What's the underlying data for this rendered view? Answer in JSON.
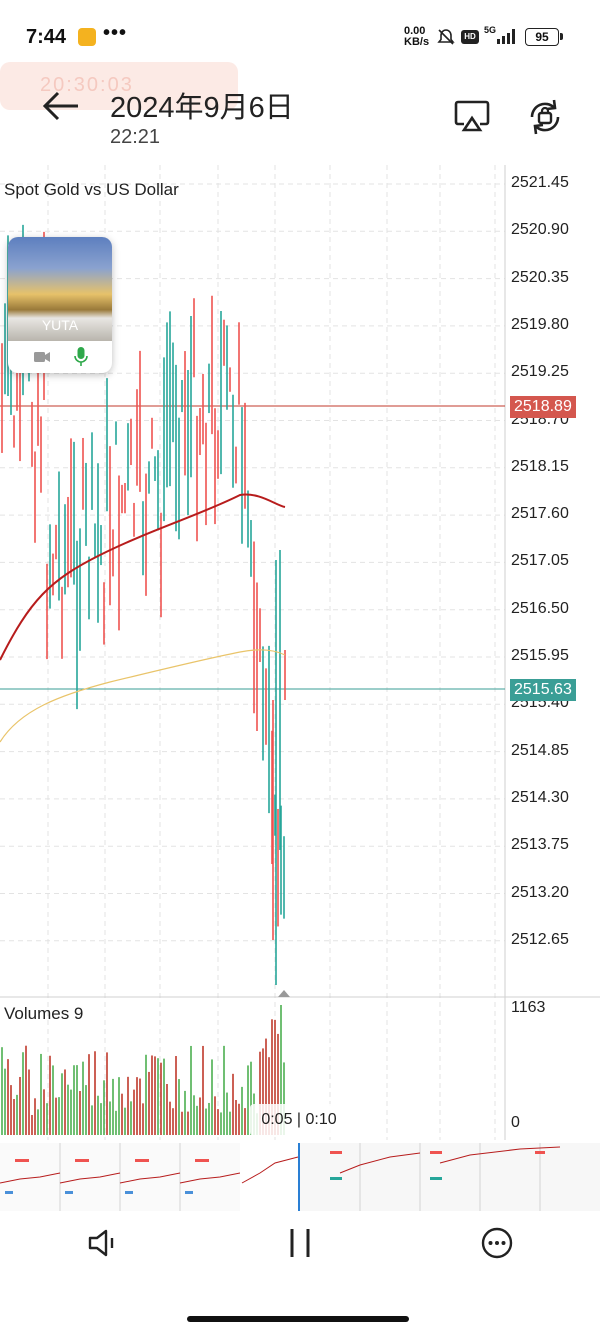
{
  "status_bar": {
    "time": "7:44",
    "dots": "•••",
    "net_speed_value": "0.00",
    "net_speed_unit": "KB/s",
    "hd": "HD",
    "network": "5G",
    "battery": "95"
  },
  "header": {
    "timer_faded": "20:30:03",
    "title": "2024年9月6日",
    "subtitle": "22:21",
    "back_icon": "arrow-left-icon",
    "cast_icon": "screen-cast-icon",
    "rotate_icon": "rotate-lock-icon"
  },
  "chart": {
    "symbol_desc": "Spot Gold vs US Dollar",
    "price_axis": [
      "2521.45",
      "2520.90",
      "2520.35",
      "2519.80",
      "2519.25",
      "2518.70",
      "2518.15",
      "2517.60",
      "2517.05",
      "2516.50",
      "2515.95",
      "2515.40",
      "2514.85",
      "2514.30",
      "2513.75",
      "2513.20",
      "2512.65"
    ],
    "red_line_price": "2518.89",
    "teal_line_price": "2515.63",
    "colors": {
      "bull": "#26a69a",
      "bear": "#ef5350",
      "ma_slow": "#b71c1c",
      "ma_fast": "#e9c46a",
      "red_line": "#c0392b",
      "teal_line": "#3a9e96"
    }
  },
  "pip": {
    "name": "YUTA",
    "camera_icon": "video-camera-icon",
    "mic_icon": "microphone-icon"
  },
  "volumes": {
    "title": "Volumes 9",
    "max": "1163",
    "zero": "0"
  },
  "video": {
    "current": "0:05",
    "separator": "|",
    "total": "0:10"
  },
  "bottom_nav": {
    "speaker_icon": "speaker-icon",
    "pause_icon": "pause-icon",
    "more_icon": "more-options-icon"
  }
}
